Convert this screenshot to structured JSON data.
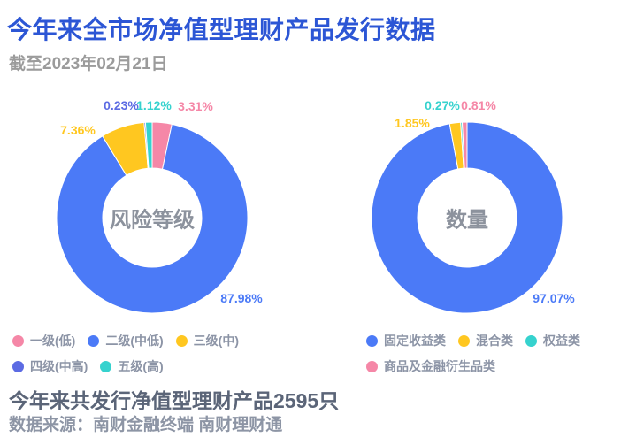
{
  "title": "今年来全市场净值型理财产品发行数据",
  "subtitle": "截至2023年02月21日",
  "footer": {
    "summary": "今年来共发行净值型理财产品2595只",
    "source": "数据来源：南财金融终端 南财理财通"
  },
  "chart_data": [
    {
      "type": "pie",
      "title": "风险等级",
      "subtype": "donut",
      "labels": [
        "一级(低)",
        "二级(中低)",
        "三级(中)",
        "四级(中高)",
        "五级(高)"
      ],
      "values": [
        3.31,
        87.98,
        7.36,
        0.23,
        1.12
      ],
      "value_labels": [
        "3.31%",
        "87.98%",
        "7.36%",
        "0.23%",
        "1.12%"
      ],
      "colors": [
        "#F587A7",
        "#4B7AF7",
        "#FFC720",
        "#5C6BE3",
        "#36D2CE"
      ],
      "start_angle": "top",
      "direction": "clockwise",
      "legend_position": "bottom"
    },
    {
      "type": "pie",
      "title": "数量",
      "subtype": "donut",
      "labels": [
        "固定收益类",
        "混合类",
        "权益类",
        "商品及金融衍生品类"
      ],
      "values": [
        97.07,
        1.85,
        0.27,
        0.81
      ],
      "value_labels": [
        "97.07%",
        "1.85%",
        "0.27%",
        "0.81%"
      ],
      "colors": [
        "#4B7AF7",
        "#FFC720",
        "#36D2CE",
        "#F587A7"
      ],
      "start_angle": "top",
      "direction": "clockwise",
      "legend_position": "bottom"
    }
  ]
}
